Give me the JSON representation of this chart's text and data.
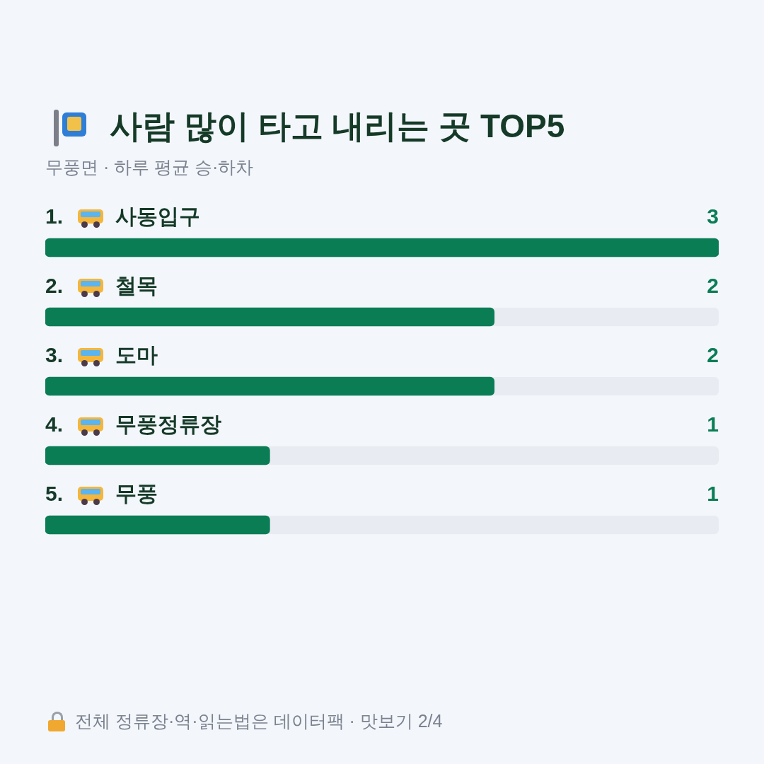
{
  "chart_data": {
    "type": "bar",
    "orientation": "horizontal",
    "title": "사람 많이 타고 내리는 곳 TOP5",
    "subtitle": "무풍면 · 하루 평균 승·하차",
    "categories": [
      "1. 사동입구",
      "2. 철목",
      "3. 도마",
      "4. 무풍정류장",
      "5. 무풍"
    ],
    "values": [
      3,
      2,
      2,
      1,
      1
    ],
    "color": "#0a7d55",
    "xlim": [
      0,
      3
    ],
    "data_labels": true,
    "tick_labels": false,
    "legend": false,
    "annotations": [
      "전체 정류장·역·읽는법은 데이터팩 · 맛보기 2/4"
    ]
  }
}
